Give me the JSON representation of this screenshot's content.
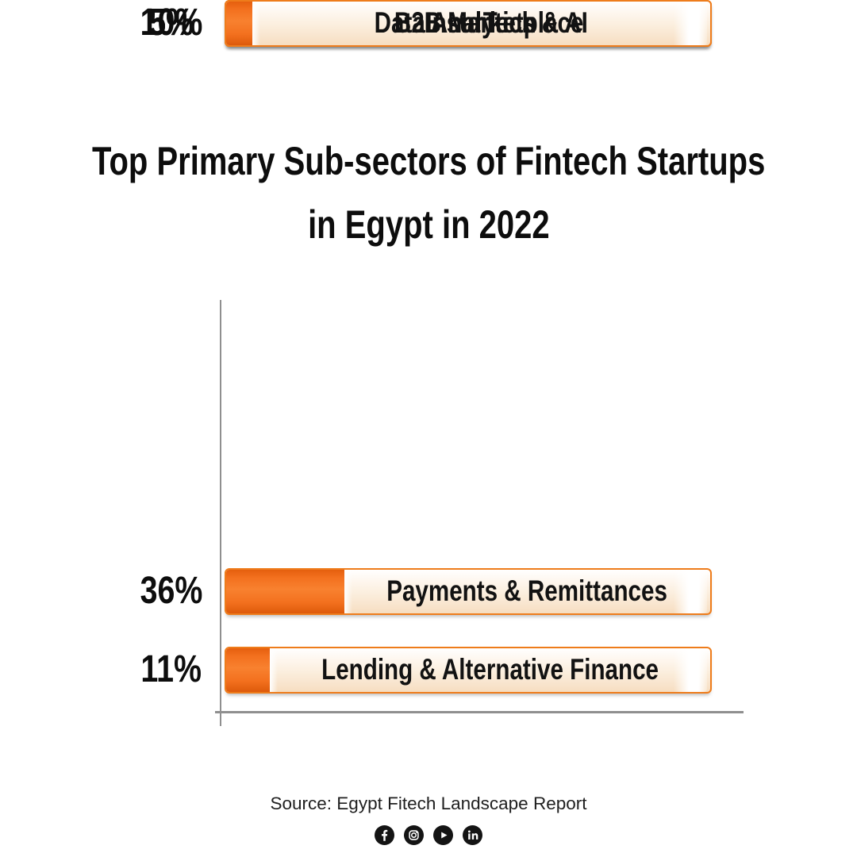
{
  "title": {
    "line1": "Top Primary Sub-sectors of Fintech Startups",
    "line2": "in Egypt in 2022"
  },
  "chart_data": {
    "type": "bar",
    "orientation": "horizontal",
    "title": "Top Primary Sub-sectors of Fintech Startups in Egypt in 2022",
    "unit": "%",
    "categories": [
      "Payments & Remittances",
      "Lending & Alternative Finance",
      "B2B Marketplace",
      "Data Analytics & AI",
      "InsurTech"
    ],
    "values": [
      36,
      11,
      10,
      5,
      5
    ],
    "rows": [
      {
        "pct_label": "36%",
        "value": 36,
        "label": "Payments & Remittances"
      },
      {
        "pct_label": "11%",
        "value": 11,
        "label": "Lending & Alternative Finance"
      },
      {
        "pct_label": "10%",
        "value": 10,
        "label": "B2B Marketplace"
      },
      {
        "pct_label": "5%",
        "value": 5,
        "label": "Data Analytics & AI"
      },
      {
        "pct_label": "5%",
        "value": 5,
        "label": "InsurTech"
      }
    ],
    "colors": {
      "bar_orange": "#F2691D",
      "bar_border": "#EE7C1B",
      "panel_cream": "#FBEEDD",
      "axis_gray": "#8F8F8F",
      "text_black": "#0D0D0D"
    },
    "legend": "none",
    "grid": "off"
  },
  "footer": {
    "source": "Source: Egypt Fitech Landscape Report",
    "social_icons": [
      "facebook-icon",
      "instagram-icon",
      "youtube-icon",
      "linkedin-icon"
    ]
  }
}
